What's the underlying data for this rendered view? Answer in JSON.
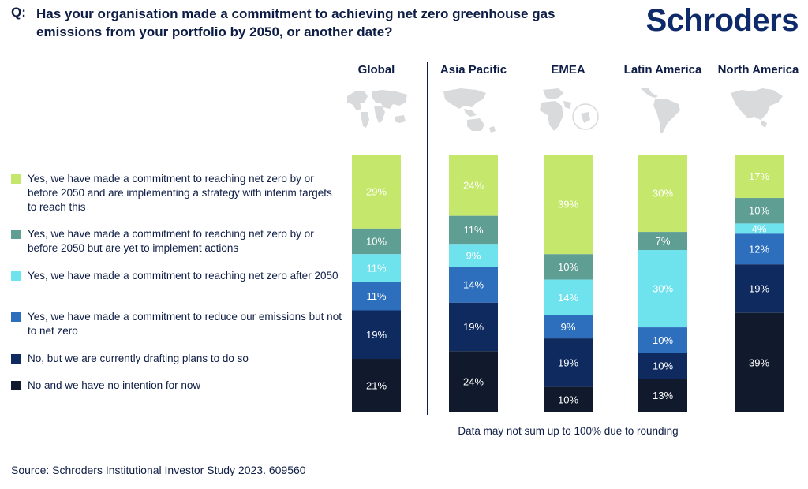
{
  "header": {
    "prefix": "Q:",
    "question": "Has your organisation made a commitment to achieving net zero greenhouse gas emissions from your portfolio by 2050, or another date?",
    "logo": "Schroders"
  },
  "colors": {
    "brand": "#0f2a6b",
    "text": "#0e1d45",
    "map": "#d9dadc"
  },
  "maps": [
    "world-map-icon",
    "asia-pacific-map-icon",
    "emea-map-icon",
    "latin-america-map-icon",
    "north-america-map-icon"
  ],
  "chart_data": {
    "type": "bar",
    "stacked": true,
    "orientation": "vertical",
    "categories": [
      "Global",
      "Asia Pacific",
      "EMEA",
      "Latin America",
      "North America"
    ],
    "series": [
      {
        "name": "Yes, we have made a commitment to reaching net zero by or before 2050 and are implementing a strategy with interim targets to reach this",
        "color": "#c5e86c",
        "text_color": "#ffffff",
        "values": [
          29,
          24,
          39,
          30,
          17
        ],
        "labels": [
          "29%",
          "24%",
          "39%",
          "30%",
          "17%"
        ]
      },
      {
        "name": "Yes, we have made a commitment to reaching net zero by or before 2050 but are yet to implement actions",
        "color": "#5e9e93",
        "text_color": "#ffffff",
        "values": [
          10,
          11,
          10,
          7,
          10
        ],
        "labels": [
          "10%",
          "11%",
          "10%",
          "7%",
          "10%"
        ]
      },
      {
        "name": "Yes, we have made a commitment to reaching net zero after 2050",
        "color": "#6ee3ee",
        "text_color": "#ffffff",
        "values": [
          11,
          9,
          14,
          30,
          4
        ],
        "labels": [
          "11%",
          "9%",
          "14%",
          "30%",
          "4%"
        ]
      },
      {
        "name": "Yes, we have made a commitment to reduce our emissions but not to net zero",
        "color": "#2d6fbd",
        "text_color": "#ffffff",
        "values": [
          11,
          14,
          9,
          10,
          12
        ],
        "labels": [
          "11%",
          "14%",
          "9%",
          "10%",
          "12%"
        ]
      },
      {
        "name": "No, but we are currently drafting plans to do so",
        "color": "#0e2a5f",
        "text_color": "#ffffff",
        "values": [
          19,
          19,
          19,
          10,
          19
        ],
        "labels": [
          "19%",
          "19%",
          "19%",
          "10%",
          "19%"
        ]
      },
      {
        "name": "No and we have no intention for now",
        "color": "#111a2c",
        "text_color": "#ffffff",
        "values": [
          21,
          24,
          10,
          13,
          39
        ],
        "labels": [
          "21%",
          "24%",
          "10%",
          "13%",
          "39%"
        ]
      }
    ],
    "legend_position": "left",
    "grid": false,
    "note": "Data may not sum up to 100% due to rounding"
  },
  "footer": {
    "source": "Source: Schroders Institutional Investor Study 2023. 609560"
  }
}
